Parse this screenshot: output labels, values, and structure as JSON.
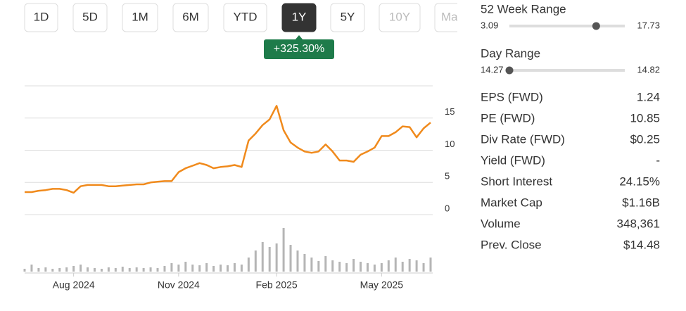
{
  "tabs": {
    "items": [
      "1D",
      "5D",
      "1M",
      "6M",
      "YTD",
      "1Y",
      "5Y",
      "10Y",
      "Max"
    ],
    "active": 5,
    "disabled": [
      7,
      8
    ]
  },
  "change_badge": "+325.30%",
  "chart_data": {
    "type": "line",
    "categories": [
      null,
      null,
      null,
      null,
      null,
      null,
      null,
      "Aug 2024",
      null,
      null,
      null,
      null,
      null,
      null,
      null,
      null,
      null,
      null,
      null,
      null,
      null,
      null,
      "Nov 2024",
      null,
      null,
      null,
      null,
      null,
      null,
      null,
      null,
      null,
      null,
      null,
      null,
      null,
      "Feb 2025",
      null,
      null,
      null,
      null,
      null,
      null,
      null,
      null,
      null,
      null,
      null,
      null,
      null,
      null,
      "May 2025",
      null,
      null,
      null,
      null,
      null,
      null,
      null
    ],
    "series": [
      {
        "color": "#f08a1c",
        "values": [
          3.5,
          3.5,
          3.7,
          3.8,
          4.0,
          4.0,
          3.8,
          3.4,
          4.4,
          4.6,
          4.6,
          4.6,
          4.4,
          4.4,
          4.5,
          4.6,
          4.7,
          4.7,
          5.0,
          5.1,
          5.2,
          5.2,
          6.6,
          7.2,
          7.6,
          8.0,
          7.7,
          7.2,
          7.4,
          7.5,
          7.7,
          7.4,
          11.5,
          12.6,
          13.9,
          14.8,
          16.9,
          13.1,
          11.2,
          10.4,
          9.8,
          9.6,
          9.8,
          10.9,
          9.8,
          8.4,
          8.4,
          8.2,
          9.3,
          9.8,
          10.4,
          12.2,
          12.2,
          12.8,
          13.7,
          13.6,
          12.0,
          13.4,
          14.3
        ]
      }
    ],
    "ylim": [
      0,
      20
    ],
    "yticks": [
      0,
      5,
      10,
      15
    ],
    "grid": true,
    "volume": [
      4,
      10,
      5,
      6,
      4,
      5,
      6,
      8,
      10,
      6,
      5,
      4,
      6,
      5,
      7,
      5,
      6,
      5,
      6,
      5,
      8,
      12,
      10,
      14,
      10,
      9,
      12,
      8,
      10,
      9,
      12,
      10,
      20,
      30,
      42,
      35,
      40,
      62,
      38,
      30,
      25,
      20,
      15,
      22,
      16,
      14,
      12,
      18,
      14,
      12,
      10,
      12,
      16,
      20,
      14,
      18,
      16,
      12,
      20
    ],
    "volume_ylim": [
      0,
      65
    ],
    "volume_color": "#b5b5b5"
  },
  "stats": {
    "range_52w": {
      "label": "52 Week Range",
      "low": 3.09,
      "high": 17.73,
      "marker": 14.1
    },
    "day_range": {
      "label": "Day Range",
      "low": 14.27,
      "high": 14.82,
      "marker": 14.27
    },
    "rows": [
      [
        "EPS (FWD)",
        "1.24"
      ],
      [
        "PE (FWD)",
        "10.85"
      ],
      [
        "Div Rate (FWD)",
        "$0.25"
      ],
      [
        "Yield (FWD)",
        "-"
      ],
      [
        "Short Interest",
        "24.15%"
      ],
      [
        "Market Cap",
        "$1.16B"
      ],
      [
        "Volume",
        "348,361"
      ],
      [
        "Prev. Close",
        "$14.48"
      ]
    ]
  }
}
